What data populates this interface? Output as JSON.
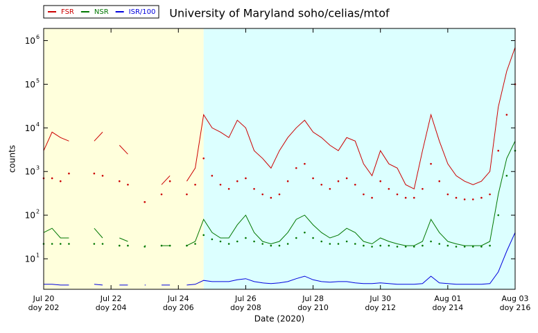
{
  "chart_data": {
    "type": "line",
    "title": "University of Maryland  soho/celias/mtof",
    "xlabel": "Date (2020)",
    "ylabel": "counts",
    "yscale": "log",
    "xlim": [
      202,
      216
    ],
    "ylim": [
      2,
      1900000
    ],
    "xticks": [
      {
        "value": 202,
        "label": "Jul 20",
        "label2": "doy 202"
      },
      {
        "value": 204,
        "label": "Jul 22",
        "label2": "doy 204"
      },
      {
        "value": 206,
        "label": "Jul 24",
        "label2": "doy 206"
      },
      {
        "value": 208,
        "label": "Jul 26",
        "label2": "doy 208"
      },
      {
        "value": 210,
        "label": "Jul 28",
        "label2": "doy 210"
      },
      {
        "value": 212,
        "label": "Jul 30",
        "label2": "doy 212"
      },
      {
        "value": 214,
        "label": "Aug 01",
        "label2": "doy 214"
      },
      {
        "value": 216,
        "label": "Aug 03",
        "label2": "doy 216"
      }
    ],
    "yticks": [
      {
        "value": 10,
        "label": "10",
        "exponent": "1"
      },
      {
        "value": 100,
        "label": "10",
        "exponent": "2"
      },
      {
        "value": 1000,
        "label": "10",
        "exponent": "3"
      },
      {
        "value": 10000,
        "label": "10",
        "exponent": "4"
      },
      {
        "value": 100000,
        "label": "10",
        "exponent": "5"
      },
      {
        "value": 1000000,
        "label": "10",
        "exponent": "6"
      }
    ],
    "regions": [
      {
        "from": 202,
        "to": 206.75,
        "color": "#ffffdc"
      },
      {
        "from": 206.75,
        "to": 216,
        "color": "#dcffff"
      }
    ],
    "x": [
      202,
      202.25,
      202.5,
      202.75,
      203,
      203.25,
      203.5,
      203.75,
      204,
      204.25,
      204.5,
      204.75,
      205,
      205.25,
      205.5,
      205.75,
      206,
      206.25,
      206.5,
      206.75,
      207,
      207.25,
      207.5,
      207.75,
      208,
      208.25,
      208.5,
      208.75,
      209,
      209.25,
      209.5,
      209.75,
      210,
      210.25,
      210.5,
      210.75,
      211,
      211.25,
      211.5,
      211.75,
      212,
      212.25,
      212.5,
      212.75,
      213,
      213.25,
      213.5,
      213.75,
      214,
      214.25,
      214.5,
      214.75,
      215,
      215.25,
      215.5,
      215.75,
      216
    ],
    "series": [
      {
        "name": "FSR",
        "color": "#cc0000",
        "style": "line",
        "values": [
          3000,
          8000,
          6000,
          5000,
          null,
          null,
          5000,
          8000,
          null,
          4000,
          2500,
          null,
          200,
          null,
          500,
          800,
          null,
          600,
          1200,
          20000,
          10000,
          8000,
          6000,
          15000,
          10000,
          3000,
          2000,
          1200,
          3000,
          6000,
          10000,
          15000,
          8000,
          6000,
          4000,
          3000,
          6000,
          5000,
          1500,
          800,
          3000,
          1500,
          1200,
          500,
          400,
          3000,
          20000,
          5000,
          1500,
          800,
          600,
          500,
          600,
          1000,
          30000,
          200000,
          700000
        ]
      },
      {
        "name": "NSR",
        "color": "#007700",
        "style": "line",
        "values": [
          40,
          50,
          30,
          30,
          null,
          null,
          50,
          30,
          null,
          30,
          25,
          null,
          20,
          null,
          20,
          20,
          null,
          20,
          25,
          80,
          40,
          30,
          30,
          60,
          100,
          40,
          25,
          22,
          25,
          40,
          80,
          100,
          60,
          40,
          30,
          35,
          50,
          40,
          25,
          22,
          30,
          25,
          22,
          20,
          20,
          25,
          80,
          40,
          25,
          22,
          20,
          20,
          20,
          25,
          300,
          2000,
          5000
        ]
      },
      {
        "name": "ISR/100",
        "color": "#0000dd",
        "style": "line",
        "values": [
          2.6,
          2.6,
          2.5,
          2.5,
          null,
          null,
          2.6,
          2.5,
          null,
          2.5,
          2.5,
          null,
          2.5,
          null,
          2.5,
          2.5,
          null,
          2.5,
          2.6,
          3.2,
          3.0,
          3.0,
          3.0,
          3.3,
          3.5,
          3.0,
          2.8,
          2.7,
          2.8,
          3.0,
          3.5,
          4.0,
          3.3,
          3.0,
          2.9,
          3.0,
          3.0,
          2.8,
          2.7,
          2.7,
          2.8,
          2.7,
          2.6,
          2.6,
          2.6,
          2.7,
          4.0,
          2.8,
          2.7,
          2.6,
          2.6,
          2.6,
          2.6,
          2.7,
          5,
          15,
          40
        ]
      },
      {
        "color": "#cc0000",
        "style": "dots",
        "values": [
          700,
          700,
          600,
          900,
          null,
          null,
          900,
          800,
          null,
          600,
          500,
          null,
          200,
          null,
          300,
          600,
          null,
          300,
          500,
          2000,
          800,
          500,
          400,
          600,
          700,
          400,
          300,
          250,
          300,
          600,
          1200,
          1500,
          700,
          500,
          400,
          600,
          700,
          500,
          300,
          250,
          600,
          400,
          300,
          250,
          250,
          400,
          1500,
          600,
          300,
          250,
          230,
          230,
          250,
          300,
          3000,
          20000,
          100000
        ]
      },
      {
        "color": "#007700",
        "style": "dots",
        "values": [
          22,
          22,
          22,
          22,
          null,
          null,
          22,
          22,
          null,
          20,
          20,
          null,
          19,
          null,
          20,
          20,
          null,
          20,
          22,
          35,
          28,
          25,
          22,
          25,
          30,
          25,
          22,
          20,
          20,
          22,
          30,
          40,
          30,
          25,
          22,
          22,
          25,
          22,
          20,
          19,
          20,
          20,
          19,
          19,
          19,
          20,
          25,
          22,
          20,
          19,
          19,
          19,
          19,
          20,
          100,
          800,
          3000
        ]
      }
    ]
  }
}
